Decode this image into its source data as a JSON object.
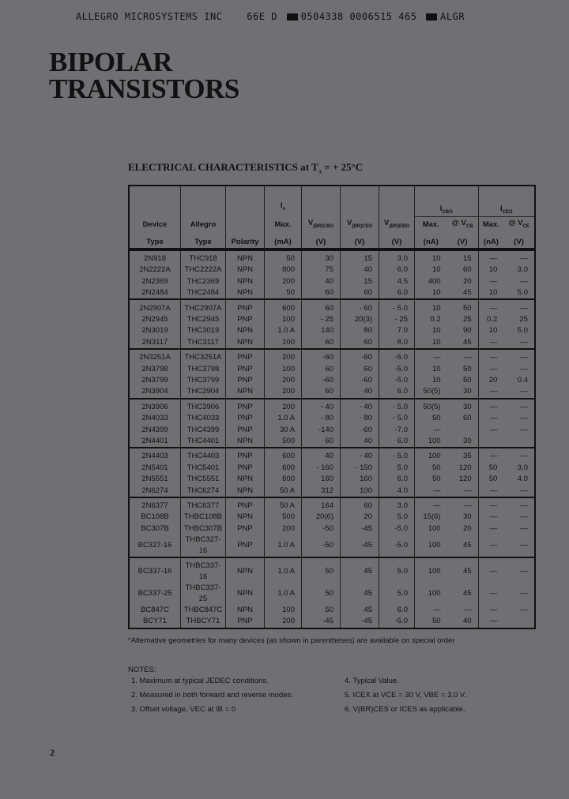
{
  "header_line": {
    "company": "ALLEGRO MICROSYSTEMS INC",
    "code1": "66E D",
    "code2": "0504338 0006515 465",
    "code3": "ALGR"
  },
  "title": [
    "BIPOLAR",
    "TRANSISTORS"
  ],
  "subtitle": {
    "text": "ELECTRICAL CHARACTERISTICS at T",
    "sub": "A",
    "tail": " = + 25°C"
  },
  "columns": {
    "device": [
      "Device",
      "Type"
    ],
    "allegro": [
      "Allegro",
      "Type"
    ],
    "polarity": "Polarity",
    "ic": {
      "sym": "I",
      "sub": "c",
      "l2": "Max.",
      "l3": "(mA)"
    },
    "vcbo": {
      "sym": "V",
      "sub": "(BR)CBO",
      "unit": "(V)"
    },
    "vceo": {
      "sym": "V",
      "sub": "(BR)CEO",
      "unit": "(V)"
    },
    "vebo": {
      "sym": "V",
      "sub": "(BR)EBO",
      "unit": "(V)"
    },
    "icbo": {
      "sym": "I",
      "sub": "CBO",
      "max": "Max.",
      "maxunit": "(nA)",
      "at": "@ V",
      "atsub": "CB",
      "atunit": "(V)"
    },
    "iceo": {
      "sym": "I",
      "sub": "CEO",
      "max": "Max.",
      "maxunit": "(nA)",
      "at": "@ V",
      "atsub": "CE",
      "atunit": "(V)"
    }
  },
  "groups": [
    [
      [
        "2N918",
        "THC918",
        "NPN",
        "50",
        "30",
        "15",
        "3.0",
        "10",
        "15",
        "—",
        "—"
      ],
      [
        "2N2222A",
        "THC2222A",
        "NPN",
        "800",
        "75",
        "40",
        "6.0",
        "10",
        "60",
        "10",
        "3.0"
      ],
      [
        "2N2369",
        "THC2369",
        "NPN",
        "200",
        "40",
        "15",
        "4.5",
        "400",
        "20",
        "—",
        "—"
      ],
      [
        "2N2484",
        "THC2484",
        "NPN",
        "50",
        "60",
        "60",
        "6.0",
        "10",
        "45",
        "10",
        "5.0"
      ]
    ],
    [
      [
        "2N2907A",
        "THC2907A",
        "PNP",
        "600",
        "60",
        "- 60",
        "- 5.0",
        "10",
        "50",
        "—",
        "—"
      ],
      [
        "2N2945",
        "THC2945",
        "PNP",
        "100",
        "- 25",
        "20(3)",
        "- 25",
        "0.2",
        "25",
        "0.2",
        "25"
      ],
      [
        "2N3019",
        "THC3019",
        "NPN",
        "1.0 A",
        "140",
        "80",
        "7.0",
        "10",
        "90",
        "10",
        "5.0"
      ],
      [
        "2N3117",
        "THC3117",
        "NPN",
        "100",
        "60",
        "60",
        "8.0",
        "10",
        "45",
        "—",
        "—"
      ]
    ],
    [
      [
        "2N3251A",
        "THC3251A",
        "PNP",
        "200",
        "-60",
        "-60",
        "-5.0",
        "—",
        "—",
        "—",
        "—"
      ],
      [
        "2N3798",
        "THC3798",
        "PNP",
        "100",
        "60",
        "60",
        "-5.0",
        "10",
        "50",
        "—",
        "—"
      ],
      [
        "2N3799",
        "THC3799",
        "PNP",
        "200",
        "-60",
        "-60",
        "-5.0",
        "10",
        "50",
        "20",
        "0.4"
      ],
      [
        "2N3904",
        "THC3904",
        "NPN",
        "200",
        "60",
        "40",
        "6.0",
        "50(5)",
        "30",
        "—",
        "—"
      ]
    ],
    [
      [
        "2N3906",
        "THC3906",
        "PNP",
        "200",
        "- 40",
        "- 40",
        "- 5.0",
        "50(5)",
        "30",
        "—",
        "—"
      ],
      [
        "2N4033",
        "THC4033",
        "PNP",
        "1.0 A",
        "- 80",
        "- 80",
        "- 5.0",
        "50",
        "60",
        "—",
        "—"
      ],
      [
        "2N4399",
        "THC4399",
        "PNP",
        "30 A",
        "-140",
        "-60",
        "-7.0",
        "—",
        "",
        "—",
        "—"
      ],
      [
        "2N4401",
        "THC4401",
        "NPN",
        "500",
        "60",
        "40",
        "6.0",
        "100",
        "30",
        "",
        ""
      ]
    ],
    [
      [
        "2N4403",
        "THC4403",
        "PNP",
        "600",
        "40",
        "- 40",
        "- 5.0",
        "100",
        "35",
        "—",
        "—"
      ],
      [
        "2N5401",
        "THC5401",
        "PNP",
        "600",
        "- 160",
        "- 150",
        "5.0",
        "50",
        "120",
        "50",
        "3.0"
      ],
      [
        "2N5551",
        "THC5551",
        "NPN",
        "600",
        "160",
        "160",
        "6.0",
        "50",
        "120",
        "50",
        "4.0"
      ],
      [
        "2N6274",
        "THC6274",
        "NPN",
        "50 A",
        "312",
        "100",
        "4.0",
        "—",
        "—",
        "—",
        "—"
      ]
    ],
    [
      [
        "2N6377",
        "THC6377",
        "PNP",
        "50 A",
        "164",
        "60",
        "3.0",
        "—",
        "—",
        "—",
        "—"
      ],
      [
        "BC108B",
        "THBC108B",
        "NPN",
        "500",
        "20(6)",
        "20",
        "5.0",
        "15(6)",
        "30",
        "—",
        "—"
      ],
      [
        "BC307B",
        "THBC307B",
        "PNP",
        "200",
        "-50",
        "-45",
        "-5.0",
        "100",
        "20",
        "—",
        "—"
      ],
      [
        "BC327-16",
        "THBC327-16",
        "PNP",
        "1.0 A",
        "-50",
        "-45",
        "-5.0",
        "100",
        "45",
        "—",
        "—"
      ]
    ],
    [
      [
        "BC337-16",
        "THBC337-16",
        "NPN",
        "1.0 A",
        "50",
        "45",
        "5.0",
        "100",
        "45",
        "—",
        "—"
      ],
      [
        "BC337-25",
        "THBC337-25",
        "NPN",
        "1.0 A",
        "50",
        "45",
        "5.0",
        "100",
        "45",
        "—",
        "—"
      ],
      [
        "BC847C",
        "THBC847C",
        "NPN",
        "100",
        "50",
        "45",
        "6.0",
        "—",
        "—",
        "—",
        "—"
      ],
      [
        "BCY71",
        "THBCY71",
        "PNP",
        "200",
        "-45",
        "-45",
        "-5.0",
        "50",
        "40",
        "—",
        ""
      ]
    ]
  ],
  "footnote": "*Alternative geometries for many devices (as shown in parentheses) are available on special order",
  "notes": {
    "heading": "NOTES:",
    "items": [
      "1.  Maximum at typical JEDEC conditions.",
      "2.  Measured in both forward and reverse modes.",
      "3.  Offset voltage, VEC at IB = 0",
      "4.  Typical Value.",
      "5.  ICEX at VCE = 30 V, VBE = 3.0 V.",
      "6.  V(BR)CES or ICES as applicable."
    ]
  },
  "page_number": "2"
}
